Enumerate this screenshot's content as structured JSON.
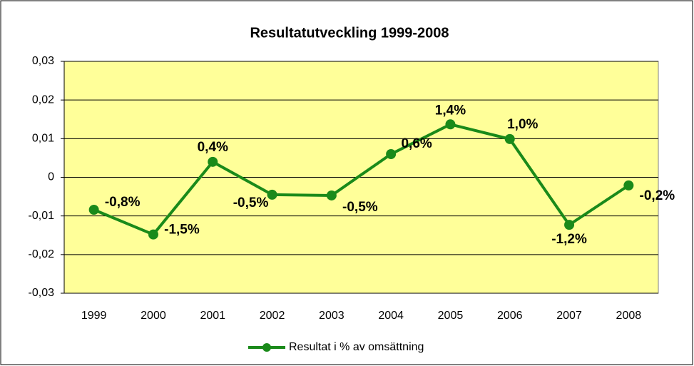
{
  "chart_data": {
    "type": "line",
    "title": "Resultatutveckling 1999-2008",
    "categories": [
      "1999",
      "2000",
      "2001",
      "2002",
      "2003",
      "2004",
      "2005",
      "2006",
      "2007",
      "2008"
    ],
    "series": [
      {
        "name": "Resultat i % av omsättning",
        "color": "#1a8a1a",
        "values": [
          -0.0084,
          -0.0148,
          0.004,
          -0.0045,
          -0.0047,
          0.006,
          0.0137,
          0.0099,
          -0.0123,
          -0.0021
        ],
        "value_labels": [
          "-0,8%",
          "-1,5%",
          "0,4%",
          "-0,5%",
          "-0,5%",
          "0,6%",
          "1,4%",
          "1,0%",
          "-1,2%",
          "-0,2%"
        ]
      }
    ],
    "ylim": [
      -0.03,
      0.03
    ],
    "yticks": [
      {
        "value": -0.03,
        "label": "-0,03"
      },
      {
        "value": -0.02,
        "label": "-0,02"
      },
      {
        "value": -0.01,
        "label": "-0,01"
      },
      0,
      {
        "value": 0.01,
        "label": "0,01"
      },
      {
        "value": 0.02,
        "label": "0,02"
      },
      {
        "value": 0.03,
        "label": "0,03"
      }
    ],
    "grid": true,
    "plot_background": "#ffff99",
    "legend": "bottom"
  }
}
